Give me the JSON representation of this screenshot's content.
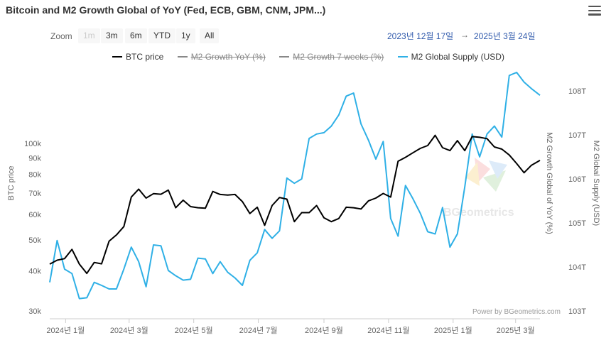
{
  "title": "Bitcoin and M2 Growth Global of YoY (Fed, ECB, GBM, CNM, JPM...)",
  "toolbar": {
    "zoom_label": "Zoom",
    "buttons": [
      "1m",
      "3m",
      "6m",
      "YTD",
      "1y",
      "All"
    ],
    "range_from": "2023년 12월 17일",
    "range_sep": "→",
    "range_to": "2025년 3월 24일"
  },
  "credit": "Power by BGeometrics.com",
  "watermark": "BGeometrics",
  "colors": {
    "btc": "#000000",
    "m2supply": "#2fb0e6",
    "hidden": "#888888"
  },
  "chart_data": {
    "type": "line",
    "legend": [
      {
        "name": "BTC price",
        "visible": true
      },
      {
        "name": "M2 Growth YoY (%)",
        "visible": false
      },
      {
        "name": "M2 Growth 7 weeks (%)",
        "visible": false
      },
      {
        "name": "M2 Global Supply (USD)",
        "visible": true
      }
    ],
    "x_tick_labels": [
      "2024년 1월",
      "2024년 3월",
      "2024년 5월",
      "2024년 7월",
      "2024년 9월",
      "2024년 11월",
      "2025년 1월",
      "2025년 3월"
    ],
    "y_left": {
      "title": "BTC price",
      "scale": "log",
      "ticks": [
        "30k",
        "40k",
        "50k",
        "60k",
        "70k",
        "80k",
        "90k",
        "100k"
      ],
      "tick_values": [
        30000,
        40000,
        50000,
        60000,
        70000,
        80000,
        90000,
        100000
      ]
    },
    "y_mid": {
      "title": "M2 Growth Global of YoY (%)"
    },
    "y_right": {
      "title": "M2 Global Supply (USD)",
      "ticks": [
        "103T",
        "104T",
        "105T",
        "106T",
        "107T",
        "108T"
      ],
      "tick_values": [
        103,
        104,
        105,
        106,
        107,
        108
      ]
    },
    "series": [
      {
        "name": "BTC price",
        "dates": [
          "2023-12-17",
          "2023-12-24",
          "2023-12-31",
          "2024-01-07",
          "2024-01-14",
          "2024-01-21",
          "2024-01-28",
          "2024-02-04",
          "2024-02-11",
          "2024-02-18",
          "2024-02-25",
          "2024-03-03",
          "2024-03-10",
          "2024-03-17",
          "2024-03-24",
          "2024-03-31",
          "2024-04-07",
          "2024-04-14",
          "2024-04-21",
          "2024-04-28",
          "2024-05-05",
          "2024-05-12",
          "2024-05-19",
          "2024-05-26",
          "2024-06-02",
          "2024-06-09",
          "2024-06-16",
          "2024-06-23",
          "2024-06-30",
          "2024-07-07",
          "2024-07-14",
          "2024-07-21",
          "2024-07-28",
          "2024-08-04",
          "2024-08-11",
          "2024-08-18",
          "2024-08-25",
          "2024-09-01",
          "2024-09-08",
          "2024-09-15",
          "2024-09-22",
          "2024-09-29",
          "2024-10-06",
          "2024-10-13",
          "2024-10-20",
          "2024-10-27",
          "2024-11-03",
          "2024-11-10",
          "2024-11-17",
          "2024-11-24",
          "2024-12-01",
          "2024-12-08",
          "2024-12-15",
          "2024-12-22",
          "2024-12-29",
          "2025-01-05",
          "2025-01-12",
          "2025-01-19",
          "2025-01-26",
          "2025-02-02",
          "2025-02-09",
          "2025-02-16",
          "2025-02-23",
          "2025-03-02",
          "2025-03-09",
          "2025-03-16",
          "2025-03-24"
        ],
        "values": [
          42000,
          43200,
          43700,
          46700,
          42000,
          39300,
          42500,
          42100,
          49500,
          51800,
          55000,
          68000,
          72000,
          67500,
          69700,
          69400,
          71500,
          63000,
          66500,
          63500,
          63000,
          62800,
          70800,
          69300,
          69000,
          69300,
          65800,
          60400,
          63200,
          55500,
          64000,
          67800,
          67000,
          57000,
          60800,
          60800,
          64000,
          58600,
          57000,
          58300,
          63200,
          63000,
          62400,
          66200,
          67500,
          69800,
          68000,
          88000,
          90500,
          93500,
          96500,
          98500,
          106000,
          97000,
          95000,
          102000,
          95000,
          105000,
          104500,
          103500,
          97500,
          96000,
          92000,
          86500,
          81000,
          85500,
          88500
        ]
      },
      {
        "name": "M2 Global Supply (USD)",
        "dates": [
          "2023-12-17",
          "2023-12-24",
          "2023-12-31",
          "2024-01-07",
          "2024-01-14",
          "2024-01-21",
          "2024-01-28",
          "2024-02-04",
          "2024-02-11",
          "2024-02-18",
          "2024-02-25",
          "2024-03-03",
          "2024-03-10",
          "2024-03-17",
          "2024-03-24",
          "2024-03-31",
          "2024-04-07",
          "2024-04-14",
          "2024-04-21",
          "2024-04-28",
          "2024-05-05",
          "2024-05-12",
          "2024-05-19",
          "2024-05-26",
          "2024-06-02",
          "2024-06-09",
          "2024-06-16",
          "2024-06-23",
          "2024-06-30",
          "2024-07-07",
          "2024-07-14",
          "2024-07-21",
          "2024-07-28",
          "2024-08-04",
          "2024-08-11",
          "2024-08-18",
          "2024-08-25",
          "2024-09-01",
          "2024-09-08",
          "2024-09-15",
          "2024-09-22",
          "2024-09-29",
          "2024-10-06",
          "2024-10-13",
          "2024-10-20",
          "2024-10-27",
          "2024-11-03",
          "2024-11-10",
          "2024-11-17",
          "2024-11-24",
          "2024-12-01",
          "2024-12-08",
          "2024-12-15",
          "2024-12-22",
          "2024-12-29",
          "2025-01-05",
          "2025-01-12",
          "2025-01-19",
          "2025-01-26",
          "2025-02-02",
          "2025-02-09",
          "2025-02-16",
          "2025-02-23",
          "2025-03-02",
          "2025-03-09",
          "2025-03-16",
          "2025-03-24"
        ],
        "values": [
          103.65,
          104.6,
          103.95,
          103.85,
          103.28,
          103.3,
          103.65,
          103.58,
          103.5,
          103.5,
          103.95,
          104.45,
          104.12,
          103.55,
          104.5,
          104.48,
          103.92,
          103.8,
          103.7,
          103.72,
          104.2,
          104.18,
          103.85,
          104.12,
          103.88,
          103.75,
          103.58,
          104.15,
          104.32,
          104.85,
          104.65,
          104.82,
          106.02,
          105.9,
          106.0,
          106.92,
          107.02,
          107.05,
          107.2,
          107.45,
          107.88,
          107.95,
          107.25,
          106.88,
          106.45,
          106.85,
          105.1,
          104.7,
          105.85,
          105.55,
          105.22,
          104.8,
          104.75,
          105.35,
          104.45,
          104.75,
          105.82,
          107.02,
          106.5,
          107.02,
          107.2,
          106.95,
          108.35,
          108.42,
          108.2,
          108.05,
          107.9
        ]
      }
    ]
  }
}
